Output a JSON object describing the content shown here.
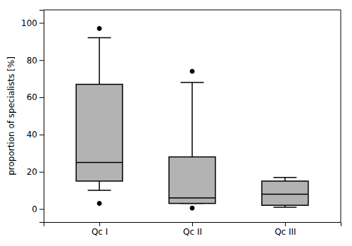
{
  "chart_data": {
    "type": "box",
    "ylabel": "proportion of specialists [%]",
    "categories": [
      "Qc I",
      "Qc II",
      "Qc III"
    ],
    "boxes": [
      {
        "med": 25,
        "q1": 15,
        "q3": 67,
        "whislo": 10,
        "whishi": 92,
        "fliers": [
          3,
          97
        ]
      },
      {
        "med": 6,
        "q1": 3,
        "q3": 28,
        "whislo": 3,
        "whishi": 68,
        "fliers": [
          0.5,
          74
        ]
      },
      {
        "med": 8,
        "q1": 2,
        "q3": 15,
        "whislo": 1,
        "whishi": 17,
        "fliers": []
      }
    ],
    "color": "#b3b3b3",
    "ylim": [
      -7,
      107
    ],
    "yticks": [
      0,
      20,
      40,
      60,
      80,
      100
    ],
    "grid": false
  }
}
